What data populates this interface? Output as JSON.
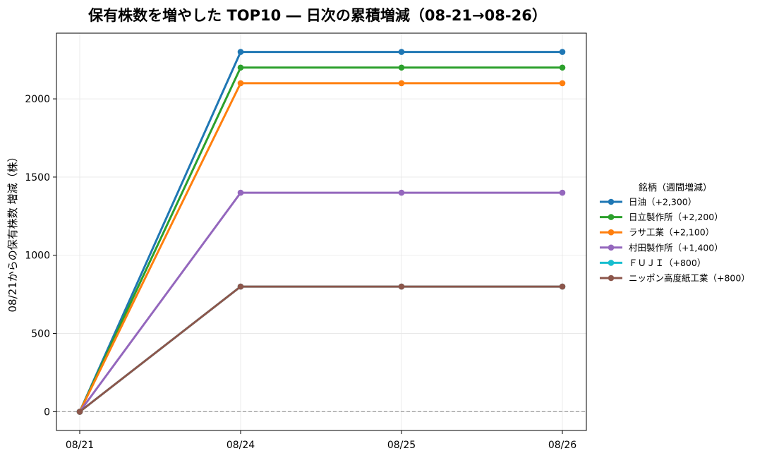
{
  "chart_data": {
    "type": "line",
    "title": "保有株数を増やした TOP10 ― 日次の累積増減（08-21→08-26）",
    "xlabel": "",
    "ylabel": "08/21からの保有株数 増減（株）",
    "categories": [
      "08/21",
      "08/24",
      "08/25",
      "08/26"
    ],
    "ylim": [
      -120,
      2420
    ],
    "yticks": [
      0,
      500,
      1000,
      1500,
      2000
    ],
    "grid": true,
    "zero_line": true,
    "legend": {
      "title": "銘柄（週間増減）",
      "placement": "right"
    },
    "series": [
      {
        "name": "日油（+2,300）",
        "values": [
          0,
          2300,
          2300,
          2300
        ],
        "color": "#1f77b4"
      },
      {
        "name": "日立製作所（+2,200）",
        "values": [
          0,
          2200,
          2200,
          2200
        ],
        "color": "#2ca02c"
      },
      {
        "name": "ラサ工業（+2,100）",
        "values": [
          0,
          2100,
          2100,
          2100
        ],
        "color": "#ff7f0e"
      },
      {
        "name": "村田製作所（+1,400）",
        "values": [
          0,
          1400,
          1400,
          1400
        ],
        "color": "#9467bd"
      },
      {
        "name": "ＦＵＪＩ（+800）",
        "values": [
          0,
          800,
          800,
          800
        ],
        "color": "#17becf"
      },
      {
        "name": "ニッポン高度紙工業（+800）",
        "values": [
          0,
          800,
          800,
          800
        ],
        "color": "#8c564b"
      }
    ]
  }
}
